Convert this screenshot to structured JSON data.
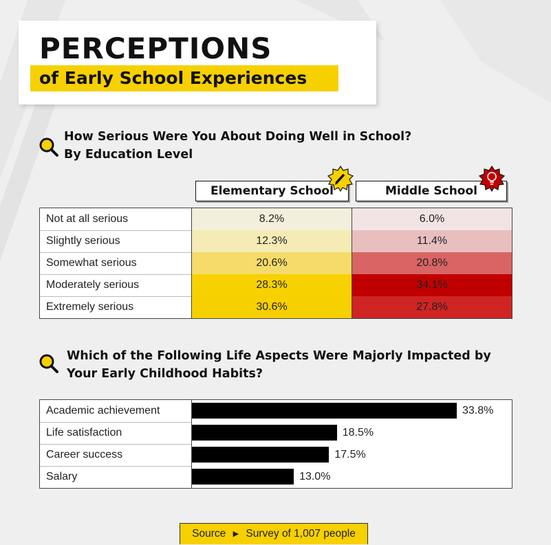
{
  "title": {
    "main": "PERCEPTIONS",
    "sub": "of Early School Experiences"
  },
  "colors": {
    "yellow_accent": "#f7d000",
    "elementary_scale": [
      "#f4efdc",
      "#f4ebb5",
      "#f5dc6a",
      "#f8d100",
      "#f7d000"
    ],
    "middle_scale": [
      "#f2e4e4",
      "#e8bebe",
      "#d96464",
      "#c00000",
      "#cf2424"
    ]
  },
  "icons": {
    "question": "magnifier-icon",
    "elementary": "pencil-icon",
    "middle": "lightbulb-icon"
  },
  "chart_data": [
    {
      "type": "table",
      "title": "How Serious Were You About Doing Well in School? By Education Level",
      "title_lines": [
        "How Serious Were You About Doing Well in School?",
        "By Education Level"
      ],
      "columns": [
        "Elementary School",
        "Middle School"
      ],
      "rows": [
        {
          "label": "Not at all serious",
          "values": [
            8.2,
            6.0
          ],
          "display": [
            "8.2%",
            "6.0%"
          ]
        },
        {
          "label": "Slightly serious",
          "values": [
            12.3,
            11.4
          ],
          "display": [
            "12.3%",
            "11.4%"
          ]
        },
        {
          "label": "Somewhat serious",
          "values": [
            20.6,
            20.8
          ],
          "display": [
            "20.6%",
            "20.8%"
          ]
        },
        {
          "label": "Moderately serious",
          "values": [
            28.3,
            34.1
          ],
          "display": [
            "28.3%",
            "34.1%"
          ]
        },
        {
          "label": "Extremely serious",
          "values": [
            30.6,
            27.8
          ],
          "display": [
            "30.6%",
            "27.8%"
          ]
        }
      ]
    },
    {
      "type": "bar",
      "orientation": "horizontal",
      "title": "Which of the Following Life Aspects Were Majorly Impacted by Your Early Childhood Habits?",
      "title_lines": [
        "Which of the Following Life Aspects Were Majorly Impacted by",
        "Your Early Childhood Habits?"
      ],
      "categories": [
        "Academic achievement",
        "Life satisfaction",
        "Career success",
        "Salary"
      ],
      "values": [
        33.8,
        18.5,
        17.5,
        13.0
      ],
      "labels": [
        "33.8%",
        "18.5%",
        "17.5%",
        "13.0%"
      ],
      "xlim": [
        0,
        33.8
      ],
      "grid": false
    }
  ],
  "source": {
    "label": "Source",
    "text": "Survey of 1,007 people"
  }
}
